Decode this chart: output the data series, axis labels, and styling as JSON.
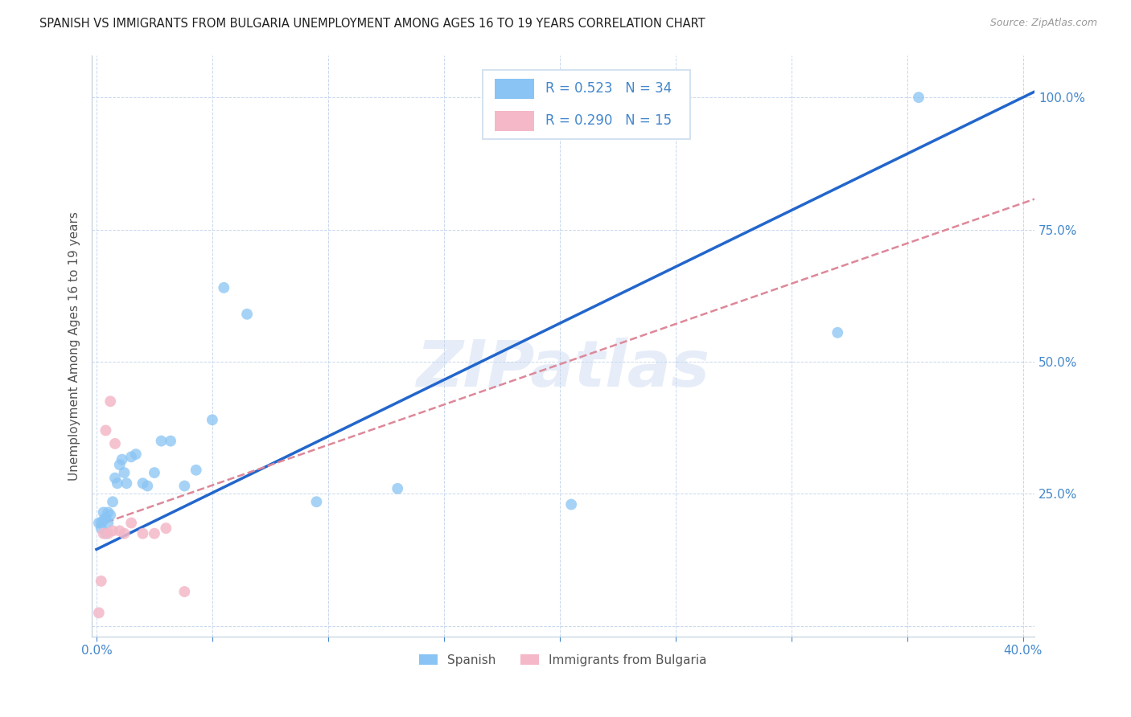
{
  "title": "SPANISH VS IMMIGRANTS FROM BULGARIA UNEMPLOYMENT AMONG AGES 16 TO 19 YEARS CORRELATION CHART",
  "source": "Source: ZipAtlas.com",
  "ylabel": "Unemployment Among Ages 16 to 19 years",
  "xlim": [
    -0.002,
    0.405
  ],
  "ylim": [
    -0.02,
    1.08
  ],
  "xtick_positions": [
    0.0,
    0.05,
    0.1,
    0.15,
    0.2,
    0.25,
    0.3,
    0.35,
    0.4
  ],
  "xtick_labels": [
    "0.0%",
    "",
    "",
    "",
    "",
    "",
    "",
    "",
    "40.0%"
  ],
  "ytick_positions": [
    0.0,
    0.25,
    0.5,
    0.75,
    1.0
  ],
  "ytick_labels": [
    "",
    "25.0%",
    "50.0%",
    "75.0%",
    "100.0%"
  ],
  "spanish_x": [
    0.001,
    0.002,
    0.002,
    0.003,
    0.003,
    0.004,
    0.004,
    0.005,
    0.005,
    0.006,
    0.007,
    0.008,
    0.009,
    0.01,
    0.011,
    0.012,
    0.013,
    0.015,
    0.017,
    0.02,
    0.022,
    0.025,
    0.028,
    0.032,
    0.038,
    0.043,
    0.05,
    0.055,
    0.065,
    0.095,
    0.13,
    0.205,
    0.32,
    0.355
  ],
  "spanish_y": [
    0.195,
    0.185,
    0.195,
    0.2,
    0.215,
    0.175,
    0.205,
    0.195,
    0.215,
    0.21,
    0.235,
    0.28,
    0.27,
    0.305,
    0.315,
    0.29,
    0.27,
    0.32,
    0.325,
    0.27,
    0.265,
    0.29,
    0.35,
    0.35,
    0.265,
    0.295,
    0.39,
    0.64,
    0.59,
    0.235,
    0.26,
    0.23,
    0.555,
    1.0
  ],
  "bulgarian_x": [
    0.001,
    0.002,
    0.003,
    0.004,
    0.005,
    0.006,
    0.007,
    0.008,
    0.01,
    0.012,
    0.015,
    0.02,
    0.025,
    0.03,
    0.038
  ],
  "bulgarian_y": [
    0.025,
    0.085,
    0.175,
    0.37,
    0.175,
    0.425,
    0.18,
    0.345,
    0.18,
    0.175,
    0.195,
    0.175,
    0.175,
    0.185,
    0.065
  ],
  "spanish_color": "#89c4f4",
  "bulgarian_color": "#f4b8c8",
  "spanish_line_color": "#2266cc",
  "bulgarian_line_color": "#dd8899",
  "legend_R_spanish": "R = 0.523",
  "legend_N_spanish": "N = 34",
  "legend_R_bulgarian": "R = 0.290",
  "legend_N_bulgarian": "N = 15",
  "watermark": "ZIPatlas",
  "marker_size": 100,
  "background_color": "#ffffff",
  "grid_color": "#c8d8ec",
  "axis_color": "#4488cc",
  "title_color": "#222222",
  "source_color": "#999999",
  "ylabel_color": "#555555"
}
